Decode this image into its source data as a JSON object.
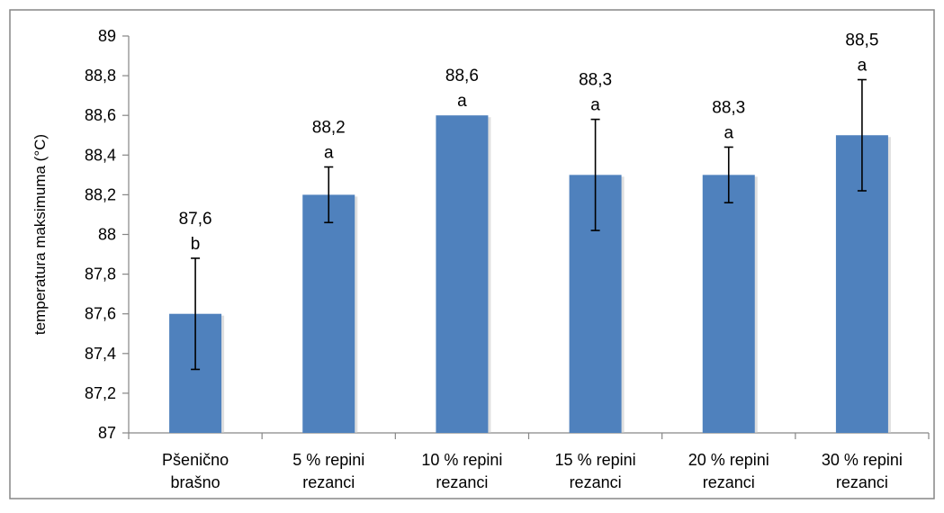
{
  "chart_data": {
    "type": "bar",
    "title": "",
    "xlabel": "",
    "ylabel": "temperatura maksimuma  (°C)",
    "ylim": [
      87,
      89
    ],
    "yticks": [
      87,
      87.2,
      87.4,
      87.6,
      87.8,
      88,
      88.2,
      88.4,
      88.6,
      88.8,
      89
    ],
    "ytick_labels": [
      "87",
      "87,2",
      "87,4",
      "87,6",
      "87,8",
      "88",
      "88,2",
      "88,4",
      "88,6",
      "88,8",
      "89"
    ],
    "grid": false,
    "legend": "none",
    "bar_color": "#4F81BD",
    "categories": [
      [
        "Pšenično",
        "brašno"
      ],
      [
        "5 % repini",
        "rezanci"
      ],
      [
        "10 % repini",
        "rezanci"
      ],
      [
        "15 % repini",
        "rezanci"
      ],
      [
        "20 % repini",
        "rezanci"
      ],
      [
        "30 % repini",
        "rezanci"
      ]
    ],
    "values": [
      87.6,
      88.2,
      88.6,
      88.3,
      88.3,
      88.5
    ],
    "value_labels": [
      "87,6",
      "88,2",
      "88,6",
      "88,3",
      "88,3",
      "88,5"
    ],
    "group_letters": [
      "b",
      "a",
      "a",
      "a",
      "a",
      "a"
    ],
    "error": [
      0.28,
      0.14,
      0.0,
      0.28,
      0.14,
      0.28
    ]
  }
}
